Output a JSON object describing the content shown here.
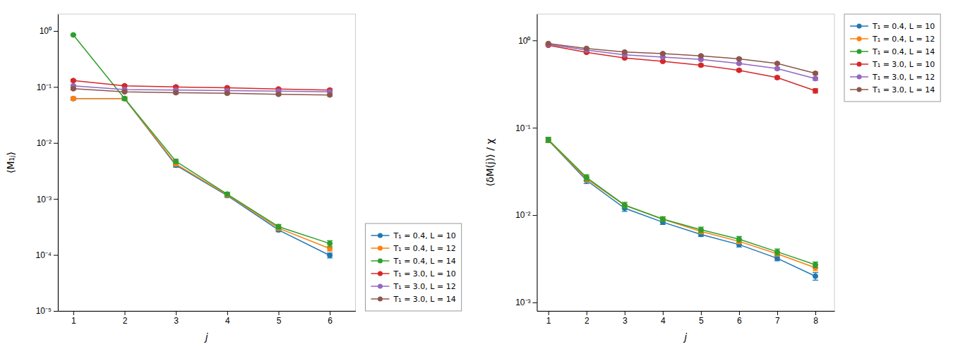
{
  "chart_data": [
    {
      "type": "line",
      "xlabel": "j",
      "ylabel": "⟨M₁ⱼ⟩",
      "log": "y",
      "xlim": [
        0.7,
        6.5
      ],
      "xticks": [
        1,
        2,
        3,
        4,
        5,
        6
      ],
      "ylim": [
        1e-05,
        2.0
      ],
      "yticks": [
        {
          "value": 1e-05,
          "label": "10⁻⁵"
        },
        {
          "value": 0.0001,
          "label": "10⁻⁴"
        },
        {
          "value": 0.001,
          "label": "10⁻³"
        },
        {
          "value": 0.01,
          "label": "10⁻²"
        },
        {
          "value": 0.1,
          "label": "10⁻¹"
        },
        {
          "value": 1,
          "label": "10⁰"
        }
      ],
      "legend": "lower left",
      "marker": "circle",
      "line_style": "solid",
      "x": [
        1,
        2,
        3,
        4,
        5,
        6
      ],
      "series": [
        {
          "name": "T₁ = 0.4, L = 10",
          "values": [
            0.062,
            0.062,
            0.004,
            0.00115,
            0.00028,
            9.8e-05
          ],
          "yerr": [
            0.004,
            0.004,
            0.0003,
            8e-05,
            2e-05,
            1e-05
          ]
        },
        {
          "name": "T₁ = 0.4, L = 12",
          "values": [
            0.062,
            0.062,
            0.0042,
            0.00118,
            0.0003,
            0.00013
          ],
          "yerr": [
            0.004,
            0.004,
            0.0003,
            9e-05,
            2.5e-05,
            1.3e-05
          ]
        },
        {
          "name": "T₁ = 0.4, L = 14",
          "values": [
            0.85,
            0.062,
            0.0047,
            0.00122,
            0.00032,
            0.00016
          ],
          "yerr": [
            0.02,
            0.004,
            0.0004,
            0.0001,
            3e-05,
            2e-05
          ]
        },
        {
          "name": "T₁ = 3.0, L = 10",
          "values": [
            0.13,
            0.105,
            0.1,
            0.097,
            0.092,
            0.088
          ],
          "yerr": [
            0.005,
            0.004,
            0.004,
            0.004,
            0.004,
            0.004
          ]
        },
        {
          "name": "T₁ = 3.0, L = 12",
          "values": [
            0.105,
            0.09,
            0.088,
            0.086,
            0.084,
            0.082
          ],
          "yerr": [
            0.004,
            0.003,
            0.003,
            0.003,
            0.003,
            0.003
          ]
        },
        {
          "name": "T₁ = 3.0, L = 14",
          "values": [
            0.093,
            0.082,
            0.079,
            0.077,
            0.074,
            0.072
          ],
          "yerr": [
            0.004,
            0.003,
            0.003,
            0.003,
            0.003,
            0.003
          ]
        }
      ]
    },
    {
      "type": "line",
      "xlabel": "j",
      "ylabel": "⟨δM(j)⟩ / χ",
      "log": "y",
      "xlim": [
        0.7,
        8.5
      ],
      "xticks": [
        1,
        2,
        3,
        4,
        5,
        6,
        7,
        8
      ],
      "ylim": [
        0.0008,
        2.0
      ],
      "yticks": [
        {
          "value": 0.001,
          "label": "10⁻³"
        },
        {
          "value": 0.01,
          "label": "10⁻²"
        },
        {
          "value": 0.1,
          "label": "10⁻¹"
        },
        {
          "value": 1,
          "label": "10⁰"
        }
      ],
      "legend": "upper right",
      "marker": "circle",
      "line_style": "solid",
      "x": [
        1,
        2,
        3,
        4,
        5,
        6,
        7,
        8
      ],
      "series": [
        {
          "name": "T₁ = 0.4, L = 10",
          "values": [
            0.072,
            0.025,
            0.012,
            0.0083,
            0.006,
            0.0046,
            0.0032,
            0.002
          ],
          "yerr": [
            0.004,
            0.002,
            0.001,
            0.0005,
            0.0003,
            0.0003,
            0.0002,
            0.0002
          ]
        },
        {
          "name": "T₁ = 0.4, L = 12",
          "values": [
            0.072,
            0.026,
            0.013,
            0.009,
            0.0065,
            0.005,
            0.0036,
            0.0025
          ],
          "yerr": [
            0.004,
            0.002,
            0.001,
            0.0005,
            0.0004,
            0.0003,
            0.0002,
            0.0002
          ]
        },
        {
          "name": "T₁ = 0.4, L = 14",
          "values": [
            0.073,
            0.027,
            0.013,
            0.009,
            0.0068,
            0.0053,
            0.0038,
            0.0027
          ],
          "yerr": [
            0.005,
            0.002,
            0.001,
            0.0006,
            0.0005,
            0.0004,
            0.0003,
            0.0002
          ]
        },
        {
          "name": "T₁ = 3.0, L = 10",
          "values": [
            0.88,
            0.73,
            0.63,
            0.575,
            0.52,
            0.455,
            0.375,
            0.265
          ],
          "yerr": [
            0.015,
            0.015,
            0.015,
            0.015,
            0.015,
            0.015,
            0.015,
            0.015
          ]
        },
        {
          "name": "T₁ = 3.0, L = 12",
          "values": [
            0.9,
            0.775,
            0.685,
            0.645,
            0.605,
            0.545,
            0.475,
            0.365
          ],
          "yerr": [
            0.015,
            0.015,
            0.015,
            0.015,
            0.015,
            0.015,
            0.015,
            0.015
          ]
        },
        {
          "name": "T₁ = 3.0, L = 14",
          "values": [
            0.92,
            0.81,
            0.735,
            0.705,
            0.665,
            0.615,
            0.545,
            0.42
          ],
          "yerr": [
            0.015,
            0.015,
            0.015,
            0.015,
            0.015,
            0.015,
            0.015,
            0.015
          ]
        }
      ]
    }
  ]
}
